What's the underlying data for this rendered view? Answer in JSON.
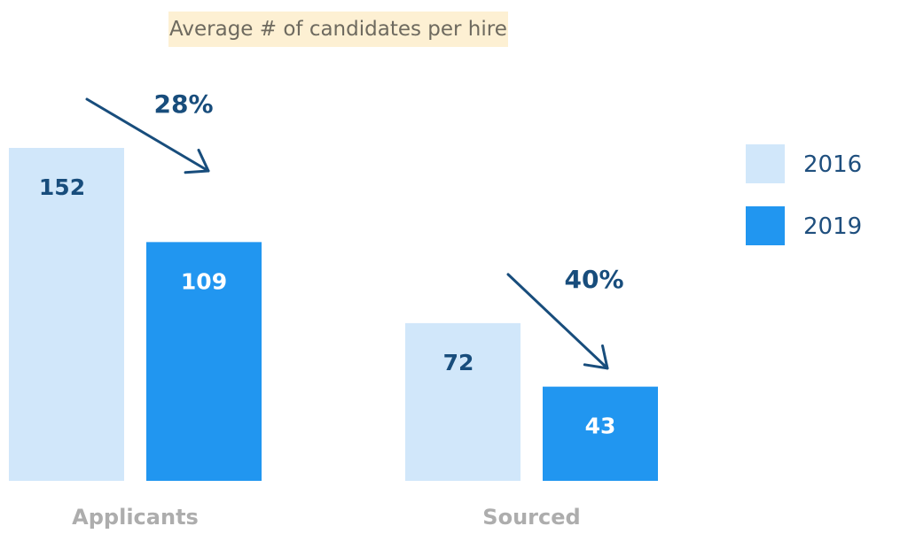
{
  "chart_data": {
    "type": "bar",
    "title": "Average # of candidates per hire",
    "categories": [
      "Applicants",
      "Sourced"
    ],
    "series": [
      {
        "name": "2016",
        "values": [
          152,
          72
        ],
        "color": "#d1e7fa",
        "label_color": "#184d7c"
      },
      {
        "name": "2019",
        "values": [
          109,
          43
        ],
        "color": "#2196f0",
        "label_color": "#ffffff"
      }
    ],
    "annotations": [
      {
        "category": "Applicants",
        "text": "28%",
        "direction": "down"
      },
      {
        "category": "Sourced",
        "text": "40%",
        "direction": "down"
      }
    ],
    "legend_position": "right",
    "grid": false,
    "ylim": [
      0,
      152
    ]
  }
}
